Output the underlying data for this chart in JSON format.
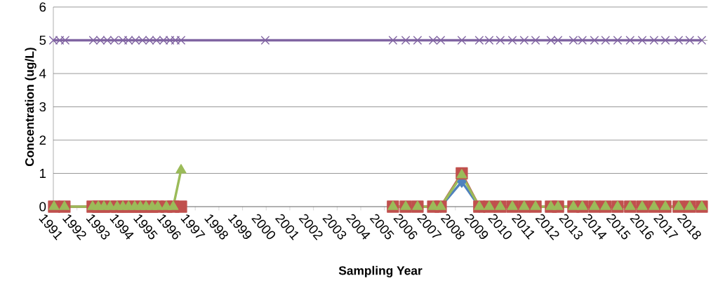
{
  "chart_data": {
    "type": "line",
    "xlabel": "Sampling Year",
    "ylabel": "Concentration (ug/L)",
    "xlim": [
      1991,
      2018.66
    ],
    "ylim": [
      0,
      6
    ],
    "xticks": [
      1991,
      1992,
      1993,
      1994,
      1995,
      1996,
      1997,
      1998,
      1999,
      2000,
      2001,
      2002,
      2003,
      2004,
      2005,
      2006,
      2007,
      2008,
      2009,
      2010,
      2011,
      2012,
      2013,
      2014,
      2015,
      2016,
      2017,
      2018
    ],
    "yticks": [
      0,
      1,
      2,
      3,
      4,
      5,
      6
    ],
    "grid": "y",
    "series": [
      {
        "color": "#4f81bd",
        "marker": "diamond",
        "x": [
          2007.38,
          2008.27,
          2009.01
        ],
        "values": [
          0,
          0.75,
          0
        ]
      },
      {
        "color": "#c0504d",
        "marker": "square",
        "x": [
          1991.03,
          1991.47,
          1992.66,
          1992.9,
          1993.14,
          1993.4,
          1993.7,
          1993.94,
          1994.18,
          1994.44,
          1994.68,
          1994.92,
          1995.18,
          1995.42,
          1995.78,
          1996.07,
          1996.4,
          2000.5,
          2005.36,
          2005.9,
          2006.4,
          2007.06,
          2007.38,
          2008.27,
          2009.01,
          2009.43,
          2009.9,
          2010.41,
          2010.91,
          2011.39,
          2012.04,
          2012.34,
          2012.99,
          2013.37,
          2013.88,
          2014.35,
          2014.86,
          2015.39,
          2015.9,
          2016.4,
          2016.88,
          2017.44,
          2017.91,
          2018.42
        ],
        "values": [
          0,
          0,
          0,
          0,
          0,
          0,
          0,
          0,
          0,
          0,
          0,
          0,
          0,
          0,
          0,
          0,
          0,
          null,
          0,
          0,
          0,
          0,
          0,
          1.0,
          0,
          0,
          0,
          0,
          0,
          0,
          0,
          0,
          0,
          0,
          0,
          0,
          0,
          0,
          0,
          0,
          0,
          0,
          0,
          0
        ]
      },
      {
        "color": "#9bbb59",
        "marker": "triangle",
        "x": [
          1991.03,
          1991.47,
          1992.66,
          1992.9,
          1993.14,
          1993.4,
          1993.7,
          1993.94,
          1994.18,
          1994.44,
          1994.68,
          1994.92,
          1995.18,
          1995.42,
          1995.78,
          1996.07,
          1996.4,
          2000.5,
          2005.36,
          2005.9,
          2006.4,
          2007.06,
          2007.38,
          2008.27,
          2009.01,
          2009.43,
          2009.9,
          2010.41,
          2010.91,
          2011.39,
          2012.04,
          2012.34,
          2012.99,
          2013.37,
          2013.88,
          2014.35,
          2014.86,
          2015.39,
          2015.9,
          2016.4,
          2016.88,
          2017.44,
          2017.91,
          2018.42
        ],
        "values": [
          0,
          0,
          0,
          0,
          0,
          0,
          0,
          0,
          0,
          0,
          0,
          0,
          0,
          0,
          0,
          0,
          1.1,
          null,
          0,
          0,
          0,
          0,
          0,
          0.95,
          0,
          0,
          0,
          0,
          0,
          0,
          0,
          0,
          0,
          0,
          0,
          0,
          0,
          0,
          0,
          0,
          0,
          0,
          0,
          0
        ]
      },
      {
        "color": "#8064a2",
        "marker": "cross",
        "x": [
          1991.0,
          1991.27,
          1991.5,
          1992.69,
          1992.99,
          1993.28,
          1993.58,
          1993.94,
          1994.18,
          1994.47,
          1994.77,
          1995.07,
          1995.36,
          1995.66,
          1995.93,
          1996.16,
          1996.4,
          1999.96,
          2005.36,
          2005.9,
          2006.4,
          2007.06,
          2007.38,
          2008.27,
          2009.01,
          2009.43,
          2009.9,
          2010.41,
          2010.91,
          2011.39,
          2012.04,
          2012.34,
          2012.99,
          2013.37,
          2013.88,
          2014.35,
          2014.86,
          2015.39,
          2015.9,
          2016.4,
          2016.88,
          2017.44,
          2017.91,
          2018.42
        ],
        "values": [
          5,
          5,
          5,
          5,
          5,
          5,
          5,
          5,
          5,
          5,
          5,
          5,
          5,
          5,
          5,
          5,
          5,
          5,
          5,
          5,
          5,
          5,
          5,
          5,
          5,
          5,
          5,
          5,
          5,
          5,
          5,
          5,
          5,
          5,
          5,
          5,
          5,
          5,
          5,
          5,
          5,
          5,
          5,
          5
        ]
      }
    ]
  }
}
